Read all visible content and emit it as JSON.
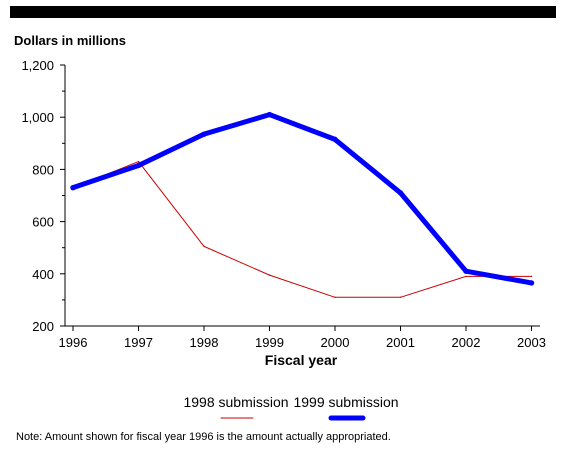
{
  "unit_label": "Dollars in millions",
  "note": "Note: Amount shown for fiscal year 1996 is the amount actually appropriated.",
  "chart_data": {
    "type": "line",
    "title": "",
    "xlabel": "Fiscal year",
    "ylabel": "Dollars in millions",
    "x": [
      "1996",
      "1997",
      "1998",
      "1999",
      "2000",
      "2001",
      "2002",
      "2003"
    ],
    "ylim": [
      200,
      1200
    ],
    "yticks": [
      200,
      400,
      600,
      800,
      1000,
      1200
    ],
    "ytick_labels": [
      "200",
      "400",
      "600",
      "800",
      "1,000",
      "1,200"
    ],
    "grid": false,
    "legend_position": "bottom",
    "series": [
      {
        "name": "1998 submission",
        "color": "#cc0000",
        "values": [
          730,
          830,
          505,
          395,
          310,
          310,
          390,
          390
        ]
      },
      {
        "name": "1999 submission",
        "color": "#0000ff",
        "values": [
          730,
          815,
          935,
          1010,
          915,
          710,
          410,
          365
        ]
      }
    ]
  }
}
